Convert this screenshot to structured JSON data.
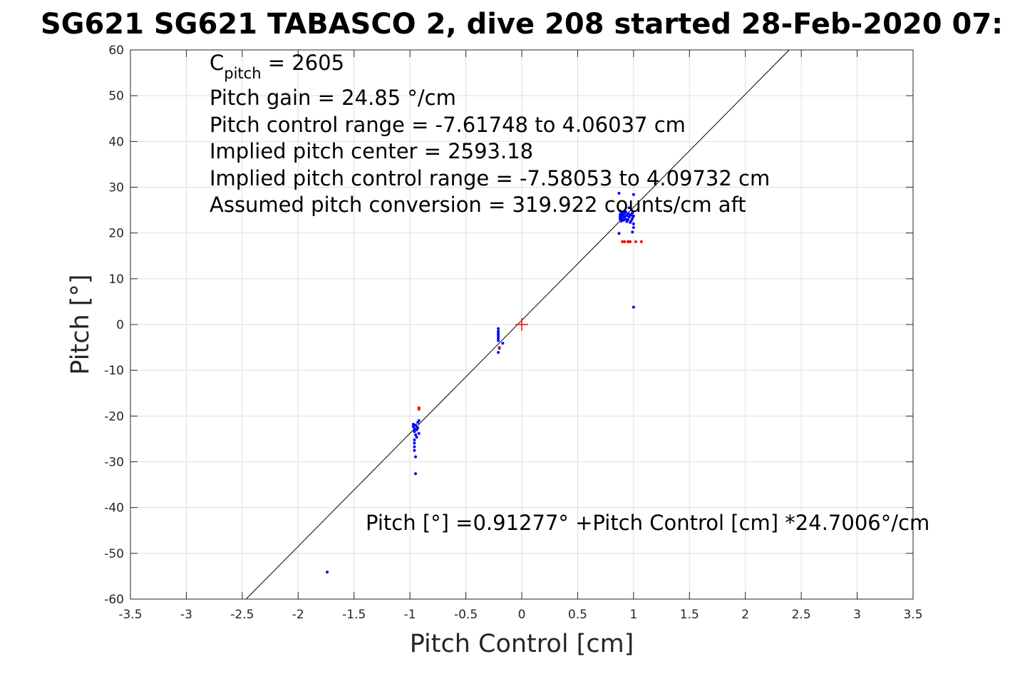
{
  "chart_data": {
    "type": "scatter",
    "title": "SG621 SG621 TABASCO 2, dive 208 started 28-Feb-2020 07:",
    "xlabel": "Pitch Control [cm]",
    "ylabel": "Pitch [°]",
    "xlim": [
      -3.5,
      3.5
    ],
    "ylim": [
      -60,
      60
    ],
    "x_ticks": [
      -3.5,
      -3,
      -2.5,
      -2,
      -1.5,
      -1,
      -0.5,
      0,
      0.5,
      1,
      1.5,
      2,
      2.5,
      3,
      3.5
    ],
    "x_tick_labels": [
      "-3.5",
      "-3",
      "-2.5",
      "-2",
      "-1.5",
      "-1",
      "-0.5",
      "0",
      "0.5",
      "1",
      "1.5",
      "2",
      "2.5",
      "3",
      "3.5"
    ],
    "y_ticks": [
      60,
      50,
      40,
      30,
      20,
      10,
      0,
      -10,
      -20,
      -30,
      -40,
      -50,
      -60
    ],
    "y_tick_labels": [
      "60",
      "50",
      "40",
      "30",
      "20",
      "10",
      "0",
      "-10",
      "-20",
      "-30",
      "-40",
      "-50",
      "-60"
    ],
    "grid": true,
    "annotations": {
      "c_pitch_base": "C",
      "c_pitch_sub": "pitch",
      "c_pitch_rest": " = 2605",
      "lines": [
        "Pitch gain = 24.85 °/cm",
        "Pitch control range = -7.61748 to 4.06037 cm",
        "Implied pitch center = 2593.18",
        "Implied pitch control range = -7.58053 to 4.09732 cm",
        "Assumed pitch conversion = 319.922 counts/cm aft"
      ],
      "fit_equation": "Pitch [°] =0.91277° +Pitch Control [cm] *24.7006°/cm"
    },
    "fit_line": {
      "intercept": 0.91277,
      "slope": 24.7006,
      "color": "#000000"
    },
    "center_marker": {
      "x": 0,
      "y": 0,
      "color": "#ff0000"
    },
    "series": [
      {
        "color": "#0000ff",
        "points": [
          [
            0.87,
            28.7
          ],
          [
            0.88,
            24.8
          ],
          [
            0.88,
            24.0
          ],
          [
            0.88,
            23.5
          ],
          [
            0.88,
            23.0
          ],
          [
            0.89,
            24.2
          ],
          [
            0.89,
            22.6
          ],
          [
            0.9,
            24.5
          ],
          [
            0.9,
            23.8
          ],
          [
            0.9,
            23.2
          ],
          [
            0.91,
            24.0
          ],
          [
            0.91,
            22.8
          ],
          [
            0.92,
            24.3
          ],
          [
            0.92,
            23.5
          ],
          [
            0.93,
            23.0
          ],
          [
            0.93,
            24.6
          ],
          [
            0.94,
            22.5
          ],
          [
            0.94,
            23.8
          ],
          [
            0.95,
            24.2
          ],
          [
            0.95,
            22.9
          ],
          [
            0.96,
            23.5
          ],
          [
            0.96,
            25.5
          ],
          [
            0.97,
            24.0
          ],
          [
            0.97,
            22.3
          ],
          [
            0.98,
            23.9
          ],
          [
            0.98,
            22.7
          ],
          [
            0.99,
            24.4
          ],
          [
            0.99,
            23.2
          ],
          [
            1.0,
            23.7
          ],
          [
            1.0,
            22.0
          ],
          [
            1.0,
            21.2
          ],
          [
            0.99,
            20.2
          ],
          [
            1.0,
            28.4
          ],
          [
            0.87,
            19.9
          ],
          [
            1.0,
            3.8
          ],
          [
            -0.21,
            -0.9
          ],
          [
            -0.21,
            -1.5
          ],
          [
            -0.21,
            -2.0
          ],
          [
            -0.21,
            -2.5
          ],
          [
            -0.21,
            -3.0
          ],
          [
            -0.21,
            -3.5
          ],
          [
            -0.2,
            -5.2
          ],
          [
            -0.21,
            -6.1
          ],
          [
            -0.17,
            -4.1
          ],
          [
            -0.97,
            -21.8
          ],
          [
            -0.97,
            -22.3
          ],
          [
            -0.96,
            -22.8
          ],
          [
            -0.96,
            -23.4
          ],
          [
            -0.95,
            -22.0
          ],
          [
            -0.95,
            -24.1
          ],
          [
            -0.94,
            -23.0
          ],
          [
            -0.94,
            -24.6
          ],
          [
            -0.93,
            -21.4
          ],
          [
            -0.93,
            -22.6
          ],
          [
            -0.92,
            -23.8
          ],
          [
            -0.92,
            -21.0
          ],
          [
            -0.96,
            -25.2
          ],
          [
            -0.96,
            -25.9
          ],
          [
            -0.96,
            -26.7
          ],
          [
            -0.96,
            -27.5
          ],
          [
            -0.95,
            -28.9
          ],
          [
            -0.95,
            -32.6
          ],
          [
            -1.74,
            -54.1
          ]
        ]
      },
      {
        "color": "#ff0000",
        "points": [
          [
            0.9,
            18.1
          ],
          [
            0.92,
            18.1
          ],
          [
            0.95,
            18.1
          ],
          [
            0.96,
            18.1
          ],
          [
            0.97,
            18.1
          ],
          [
            1.02,
            18.1
          ],
          [
            1.07,
            18.1
          ],
          [
            -0.92,
            -18.2
          ],
          [
            -0.92,
            -18.5
          ],
          [
            -0.2,
            -5.0
          ]
        ]
      }
    ]
  }
}
